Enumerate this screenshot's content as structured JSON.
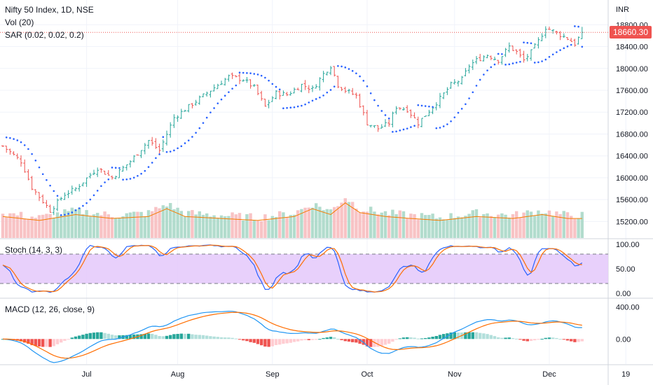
{
  "chart_data": {
    "type": "candlestick",
    "title": "Nifty 50 Index, 1D, NSE",
    "currency_label": "INR",
    "last_price_label": "18660.30",
    "indicator_labels": {
      "volume": "Vol (20)",
      "sar": "SAR (0.02, 0.02, 0.2)",
      "stoch": "Stoch (14, 3, 3)",
      "macd": "MACD (12, 26, close, 9)"
    },
    "x_tick_labels": [
      "Jul",
      "Aug",
      "Sep",
      "Oct",
      "Nov",
      "Dec",
      "19"
    ],
    "price_axis": {
      "ticks": [
        "18800.00",
        "18400.00",
        "18000.00",
        "17600.00",
        "17200.00",
        "16800.00",
        "16400.00",
        "16000.00",
        "15600.00",
        "15200.00"
      ],
      "ylim": [
        15000,
        19150
      ]
    },
    "stoch_axis": {
      "ticks": [
        "100.00",
        "50.00",
        "0.00"
      ],
      "upper_band": 80,
      "lower_band": 20
    },
    "macd_axis": {
      "ticks": [
        "400.00",
        "0.00"
      ]
    },
    "close_anchors": [
      [
        0,
        16580
      ],
      [
        5,
        16300
      ],
      [
        8,
        15820
      ],
      [
        13,
        15400
      ],
      [
        17,
        15700
      ],
      [
        20,
        15800
      ],
      [
        26,
        16180
      ],
      [
        30,
        16000
      ],
      [
        35,
        16300
      ],
      [
        40,
        16680
      ],
      [
        43,
        16500
      ],
      [
        47,
        17100
      ],
      [
        52,
        17350
      ],
      [
        57,
        17600
      ],
      [
        62,
        17850
      ],
      [
        66,
        17800
      ],
      [
        69,
        17650
      ],
      [
        72,
        17300
      ],
      [
        75,
        17550
      ],
      [
        78,
        17520
      ],
      [
        82,
        17700
      ],
      [
        85,
        17620
      ],
      [
        88,
        17900
      ],
      [
        90,
        18050
      ],
      [
        92,
        17700
      ],
      [
        94,
        17600
      ],
      [
        97,
        17500
      ],
      [
        100,
        17000
      ],
      [
        103,
        16900
      ],
      [
        106,
        17000
      ],
      [
        108,
        17300
      ],
      [
        111,
        17250
      ],
      [
        114,
        17000
      ],
      [
        116,
        17150
      ],
      [
        118,
        17300
      ],
      [
        120,
        17450
      ],
      [
        123,
        17700
      ],
      [
        126,
        17800
      ],
      [
        128,
        18050
      ],
      [
        130,
        18150
      ],
      [
        133,
        18250
      ],
      [
        136,
        18150
      ],
      [
        139,
        18400
      ],
      [
        141,
        18300
      ],
      [
        143,
        18150
      ],
      [
        145,
        18300
      ],
      [
        147,
        18500
      ],
      [
        149,
        18750
      ],
      [
        152,
        18650
      ],
      [
        155,
        18550
      ],
      [
        157,
        18450
      ],
      [
        159,
        18660.3
      ]
    ],
    "volume_anchors": [
      [
        0,
        0.55
      ],
      [
        10,
        0.45
      ],
      [
        20,
        0.6
      ],
      [
        30,
        0.5
      ],
      [
        40,
        0.55
      ],
      [
        45,
        0.75
      ],
      [
        50,
        0.55
      ],
      [
        60,
        0.5
      ],
      [
        70,
        0.45
      ],
      [
        80,
        0.55
      ],
      [
        85,
        0.75
      ],
      [
        90,
        0.6
      ],
      [
        94,
        0.9
      ],
      [
        98,
        0.65
      ],
      [
        105,
        0.55
      ],
      [
        112,
        0.5
      ],
      [
        120,
        0.45
      ],
      [
        130,
        0.55
      ],
      [
        140,
        0.5
      ],
      [
        148,
        0.6
      ],
      [
        155,
        0.5
      ],
      [
        159,
        0.5
      ]
    ],
    "grid": true,
    "legend_position": "top-left"
  }
}
